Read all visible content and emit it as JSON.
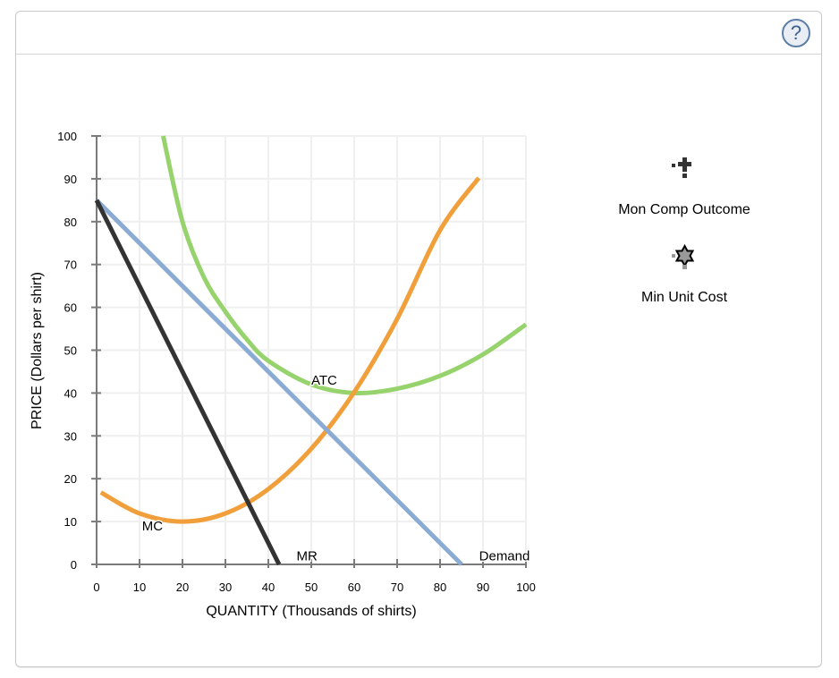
{
  "panel": {
    "help_icon": "question-circle-icon",
    "help_label": "?"
  },
  "legend": {
    "items": [
      {
        "label": "Mon Comp Outcome",
        "icon": "plus-marker-icon",
        "color": "#333333"
      },
      {
        "label": "Min Unit Cost",
        "icon": "star-marker-icon",
        "color": "#999999"
      }
    ]
  },
  "chart_data": {
    "type": "line",
    "title": "",
    "xlabel": "QUANTITY (Thousands of shirts)",
    "ylabel": "PRICE (Dollars per shirt)",
    "xlim": [
      0,
      100
    ],
    "ylim": [
      0,
      100
    ],
    "xticks": [
      0,
      10,
      20,
      30,
      40,
      50,
      60,
      70,
      80,
      90,
      100
    ],
    "yticks": [
      0,
      10,
      20,
      30,
      40,
      50,
      60,
      70,
      80,
      90,
      100
    ],
    "grid": true,
    "series": [
      {
        "name": "Demand",
        "color": "#8aabd4",
        "x": [
          0,
          85
        ],
        "y": [
          85,
          0
        ]
      },
      {
        "name": "MR",
        "color": "#333333",
        "x": [
          0,
          42.5
        ],
        "y": [
          85,
          0
        ]
      },
      {
        "name": "MC",
        "color": "#f19f3a",
        "x": [
          1,
          10,
          20,
          30,
          40,
          50,
          60,
          70,
          80,
          89
        ],
        "y": [
          16.8,
          11.9,
          10,
          11.9,
          17.6,
          27,
          40.2,
          57.3,
          78,
          90.2
        ]
      },
      {
        "name": "ATC",
        "color": "#97d36d",
        "x": [
          15.5,
          20,
          25,
          30,
          35,
          40,
          50,
          60,
          70,
          80,
          90,
          100
        ],
        "y": [
          100,
          80,
          67,
          59,
          52.5,
          47.5,
          42,
          40,
          41,
          44,
          49,
          56
        ]
      }
    ],
    "annotations": [
      {
        "text": "ATC",
        "x": 53,
        "y": 43
      },
      {
        "text": "MC",
        "x": 13,
        "y": 9
      },
      {
        "text": "MR",
        "x": 49,
        "y": 2
      },
      {
        "text": "Demand",
        "x": 95,
        "y": 2
      }
    ]
  }
}
